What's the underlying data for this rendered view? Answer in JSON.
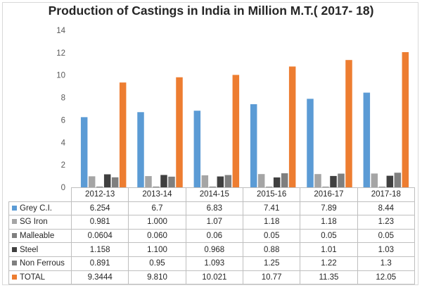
{
  "chart_data": {
    "type": "bar",
    "title": "Production of Castings in India in Million M.T.( 2017- 18)",
    "categories": [
      "2012-13",
      "2013-14",
      "2014-15",
      "2015-16",
      "2016-17",
      "2017-18"
    ],
    "ylim": [
      0,
      14
    ],
    "yticks": [
      "0",
      "2",
      "4",
      "6",
      "8",
      "10",
      "12",
      "14"
    ],
    "grid": false,
    "legend": "data-table",
    "series": [
      {
        "name": "Grey C.I.",
        "color": "#5b9bd5",
        "values": [
          6.254,
          6.7,
          6.83,
          7.41,
          7.89,
          8.44
        ],
        "labels": [
          "6.254",
          "6.7",
          "6.83",
          "7.41",
          "7.89",
          "8.44"
        ]
      },
      {
        "name": "SG Iron",
        "color": "#a5a5a5",
        "values": [
          0.981,
          1.0,
          1.07,
          1.18,
          1.18,
          1.23
        ],
        "labels": [
          "0.981",
          "1.000",
          "1.07",
          "1.18",
          "1.18",
          "1.23"
        ]
      },
      {
        "name": "Malleable",
        "color": "#7f7f7f",
        "values": [
          0.0604,
          0.06,
          0.06,
          0.05,
          0.05,
          0.05
        ],
        "labels": [
          "0.0604",
          "0.060",
          "0.06",
          "0.05",
          "0.05",
          "0.05"
        ]
      },
      {
        "name": "Steel",
        "color": "#404040",
        "values": [
          1.158,
          1.1,
          0.968,
          0.88,
          1.01,
          1.03
        ],
        "labels": [
          "1.158",
          "1.100",
          "0.968",
          "0.88",
          "1.01",
          "1.03"
        ]
      },
      {
        "name": "Non Ferrous",
        "color": "#7f7f7f",
        "values": [
          0.891,
          0.95,
          1.093,
          1.25,
          1.22,
          1.3
        ],
        "labels": [
          "0.891",
          "0.95",
          "1.093",
          "1.25",
          "1.22",
          "1.3"
        ]
      },
      {
        "name": "TOTAL",
        "color": "#ed7d31",
        "values": [
          9.3444,
          9.81,
          10.021,
          10.77,
          11.35,
          12.05
        ],
        "labels": [
          "9.3444",
          "9.810",
          "10.021",
          "10.77",
          "11.35",
          "12.05"
        ]
      }
    ]
  }
}
